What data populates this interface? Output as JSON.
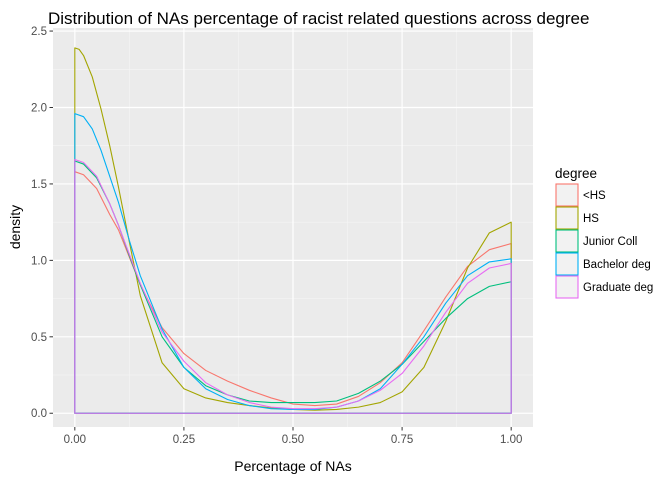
{
  "chart_data": {
    "type": "line",
    "title": "Distribution of NAs percentage of racist related questions across degree",
    "xlabel": "Percentage of NAs",
    "ylabel": "density",
    "xlim": [
      -0.05,
      1.05
    ],
    "ylim": [
      -0.09,
      2.52
    ],
    "x_ticks": [
      {
        "value": 0,
        "label": "0.00"
      },
      {
        "value": 0.25,
        "label": "0.25"
      },
      {
        "value": 0.5,
        "label": "0.50"
      },
      {
        "value": 0.75,
        "label": "0.75"
      },
      {
        "value": 1,
        "label": "1.00"
      }
    ],
    "y_ticks": [
      {
        "value": 0,
        "label": "0.0"
      },
      {
        "value": 0.5,
        "label": "0.5"
      },
      {
        "value": 1,
        "label": "1.0"
      },
      {
        "value": 1.5,
        "label": "1.5"
      },
      {
        "value": 2,
        "label": "2.0"
      },
      {
        "value": 2.5,
        "label": "2.5"
      }
    ],
    "grid": true,
    "panel_background": "#ebebeb",
    "legend": {
      "title": "degree",
      "position": "right"
    },
    "series": [
      {
        "name": "<HS",
        "color": "#f8766d",
        "x": [
          0,
          0.02,
          0.05,
          0.08,
          0.1,
          0.125,
          0.15,
          0.2,
          0.25,
          0.3,
          0.35,
          0.4,
          0.45,
          0.5,
          0.55,
          0.6,
          0.65,
          0.7,
          0.75,
          0.8,
          0.85,
          0.9,
          0.95,
          1
        ],
        "y": [
          1.58,
          1.56,
          1.47,
          1.3,
          1.2,
          1.02,
          0.84,
          0.56,
          0.39,
          0.28,
          0.21,
          0.15,
          0.1,
          0.06,
          0.05,
          0.06,
          0.11,
          0.2,
          0.33,
          0.54,
          0.76,
          0.96,
          1.07,
          1.11
        ]
      },
      {
        "name": "HS",
        "color": "#a3a500",
        "x": [
          0,
          0.01,
          0.02,
          0.04,
          0.06,
          0.08,
          0.1,
          0.125,
          0.15,
          0.2,
          0.25,
          0.3,
          0.35,
          0.4,
          0.45,
          0.5,
          0.55,
          0.6,
          0.65,
          0.7,
          0.75,
          0.8,
          0.85,
          0.9,
          0.95,
          1
        ],
        "y": [
          2.39,
          2.38,
          2.34,
          2.2,
          1.99,
          1.75,
          1.48,
          1.12,
          0.77,
          0.33,
          0.16,
          0.1,
          0.07,
          0.05,
          0.035,
          0.025,
          0.02,
          0.025,
          0.04,
          0.07,
          0.14,
          0.3,
          0.6,
          0.95,
          1.18,
          1.25
        ]
      },
      {
        "name": "Junior Coll",
        "color": "#00bf7d",
        "x": [
          0,
          0.02,
          0.05,
          0.08,
          0.1,
          0.125,
          0.15,
          0.2,
          0.25,
          0.3,
          0.35,
          0.4,
          0.45,
          0.5,
          0.55,
          0.6,
          0.65,
          0.7,
          0.75,
          0.8,
          0.85,
          0.9,
          0.95,
          1
        ],
        "y": [
          1.65,
          1.63,
          1.54,
          1.37,
          1.23,
          1.03,
          0.84,
          0.5,
          0.3,
          0.18,
          0.12,
          0.08,
          0.07,
          0.07,
          0.07,
          0.08,
          0.13,
          0.21,
          0.32,
          0.47,
          0.62,
          0.75,
          0.83,
          0.86
        ]
      },
      {
        "name": "Bachelor deg",
        "color": "#00b0f6",
        "x": [
          0,
          0.02,
          0.04,
          0.06,
          0.08,
          0.1,
          0.125,
          0.15,
          0.2,
          0.25,
          0.3,
          0.35,
          0.4,
          0.45,
          0.5,
          0.55,
          0.6,
          0.65,
          0.7,
          0.75,
          0.8,
          0.85,
          0.9,
          0.95,
          1
        ],
        "y": [
          1.96,
          1.94,
          1.86,
          1.72,
          1.55,
          1.38,
          1.13,
          0.9,
          0.55,
          0.3,
          0.16,
          0.09,
          0.05,
          0.03,
          0.025,
          0.025,
          0.04,
          0.08,
          0.16,
          0.32,
          0.5,
          0.72,
          0.9,
          0.99,
          1.01
        ]
      },
      {
        "name": "Graduate deg",
        "color": "#e76bf3",
        "x": [
          0,
          0.02,
          0.05,
          0.08,
          0.1,
          0.125,
          0.15,
          0.2,
          0.25,
          0.3,
          0.35,
          0.4,
          0.45,
          0.5,
          0.55,
          0.6,
          0.65,
          0.7,
          0.75,
          0.8,
          0.85,
          0.9,
          0.95,
          1
        ],
        "y": [
          1.66,
          1.64,
          1.55,
          1.37,
          1.23,
          1.04,
          0.85,
          0.53,
          0.34,
          0.2,
          0.12,
          0.07,
          0.04,
          0.03,
          0.03,
          0.04,
          0.08,
          0.15,
          0.26,
          0.44,
          0.66,
          0.85,
          0.95,
          0.98
        ]
      }
    ]
  }
}
